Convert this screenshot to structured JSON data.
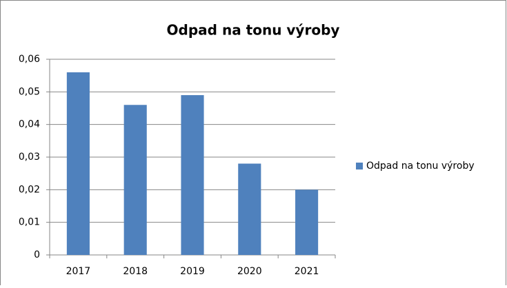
{
  "chart_data": {
    "type": "bar",
    "title": "Odpad na tonu výroby",
    "categories": [
      "2017",
      "2018",
      "2019",
      "2020",
      "2021"
    ],
    "series": [
      {
        "name": "Odpad na tonu výroby",
        "color": "#4f81bd",
        "values": [
          0.056,
          0.046,
          0.049,
          0.028,
          0.02
        ]
      }
    ],
    "ylim": [
      0,
      0.06
    ],
    "yticks": [
      0,
      {
        "value": 0.01,
        "label": "0,01"
      },
      {
        "value": 0.02,
        "label": "0,02"
      },
      {
        "value": 0.03,
        "label": "0,03"
      },
      {
        "value": 0.04,
        "label": "0,04"
      },
      {
        "value": 0.05,
        "label": "0,05"
      },
      {
        "value": 0.06,
        "label": "0,06"
      }
    ],
    "grid": true,
    "legend": "right"
  }
}
